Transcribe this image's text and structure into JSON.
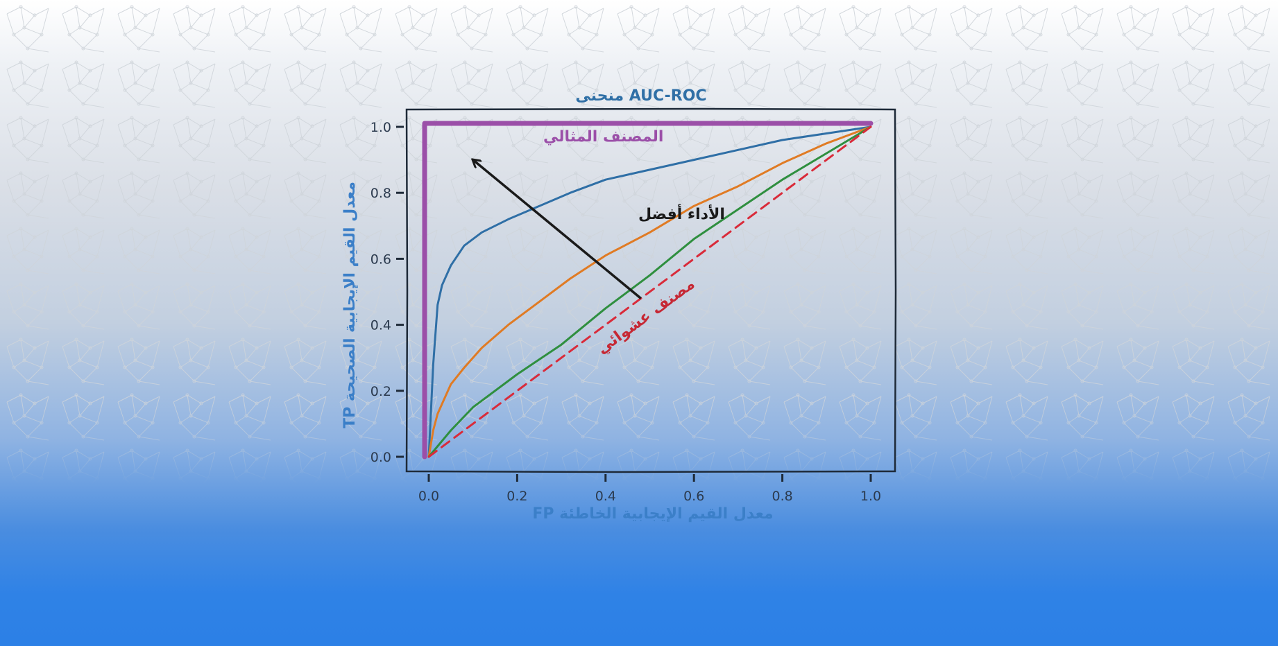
{
  "chart_data": {
    "type": "line",
    "title": "منحنى AUC-ROC",
    "xlabel": "معدل القيم الإيجابية الخاطئة  FP",
    "ylabel": "معدل القيم الإيجابية الصحيحة  TP",
    "xlim": [
      0,
      1
    ],
    "ylim": [
      0,
      1
    ],
    "xticks": [
      "0.0",
      "0.2",
      "0.4",
      "0.6",
      "0.8",
      "1.0"
    ],
    "yticks": [
      "0.0",
      "0.2",
      "0.4",
      "0.6",
      "0.8",
      "1.0"
    ],
    "grid": false,
    "series": [
      {
        "name": "المصنف المثالي",
        "color": "#9b4fa8",
        "style": "solid",
        "x": [
          0,
          0,
          1
        ],
        "y": [
          0,
          1,
          1
        ]
      },
      {
        "color": "#2f6fa6",
        "style": "solid",
        "x": [
          0,
          0.01,
          0.02,
          0.03,
          0.05,
          0.08,
          0.12,
          0.18,
          0.25,
          0.32,
          0.4,
          0.5,
          0.6,
          0.7,
          0.8,
          0.9,
          1.0
        ],
        "y": [
          0,
          0.28,
          0.46,
          0.52,
          0.58,
          0.64,
          0.68,
          0.72,
          0.76,
          0.8,
          0.84,
          0.87,
          0.9,
          0.93,
          0.96,
          0.98,
          1.0
        ]
      },
      {
        "color": "#e07b24",
        "style": "solid",
        "x": [
          0,
          0.01,
          0.02,
          0.03,
          0.05,
          0.08,
          0.12,
          0.18,
          0.25,
          0.32,
          0.4,
          0.5,
          0.6,
          0.7,
          0.8,
          0.9,
          1.0
        ],
        "y": [
          0,
          0.08,
          0.13,
          0.16,
          0.22,
          0.27,
          0.33,
          0.4,
          0.47,
          0.54,
          0.61,
          0.68,
          0.76,
          0.82,
          0.89,
          0.95,
          1.0
        ]
      },
      {
        "color": "#2f8f3f",
        "style": "solid",
        "x": [
          0,
          0.05,
          0.1,
          0.2,
          0.3,
          0.4,
          0.5,
          0.6,
          0.7,
          0.8,
          0.9,
          1.0
        ],
        "y": [
          0,
          0.08,
          0.15,
          0.25,
          0.34,
          0.45,
          0.55,
          0.66,
          0.75,
          0.84,
          0.92,
          1.0
        ]
      },
      {
        "name": "مصنف عشوائي",
        "color": "#d92b3a",
        "style": "dashed",
        "x": [
          0,
          1
        ],
        "y": [
          0,
          1
        ]
      }
    ],
    "annotations": [
      {
        "text": "الأداء أفضل",
        "kind": "arrow",
        "from": [
          0.48,
          0.48
        ],
        "to": [
          0.1,
          0.9
        ]
      }
    ]
  }
}
